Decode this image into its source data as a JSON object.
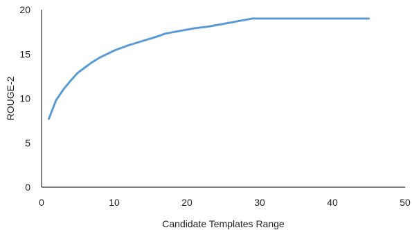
{
  "chart_data": {
    "type": "line",
    "title": "",
    "xlabel": "Candidate Templates Range",
    "ylabel": "ROUGE-2",
    "xlim": [
      0,
      50
    ],
    "ylim": [
      0,
      20
    ],
    "x_ticks": [
      "0",
      "10",
      "20",
      "30",
      "40",
      "50"
    ],
    "y_ticks": [
      "0",
      "5",
      "10",
      "15",
      "20"
    ],
    "grid": false,
    "legend": "none",
    "colors": {
      "series": "#5b9bd5",
      "axis": "#000000"
    },
    "series": [
      {
        "x": [
          1,
          2,
          3,
          4,
          5,
          6,
          7,
          8,
          9,
          10,
          12,
          14,
          16,
          17,
          19,
          21,
          23,
          25,
          27,
          29,
          30,
          33,
          36,
          40,
          45
        ],
        "values": [
          7.7,
          9.8,
          11.0,
          12.0,
          12.9,
          13.5,
          14.1,
          14.6,
          15.0,
          15.4,
          16.0,
          16.5,
          17.0,
          17.3,
          17.6,
          17.9,
          18.1,
          18.4,
          18.7,
          19.0,
          19.0,
          19.0,
          19.0,
          19.0,
          19.0
        ]
      }
    ]
  }
}
